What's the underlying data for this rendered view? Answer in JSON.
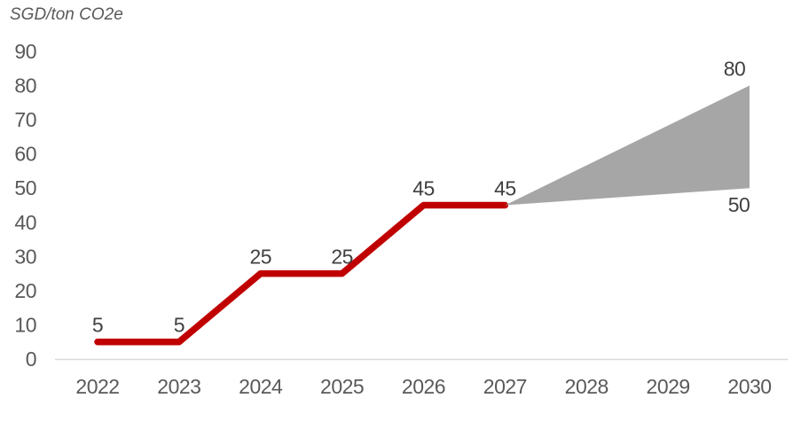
{
  "chart_data": {
    "type": "line",
    "title": "SGD/ton CO2e",
    "ylabel": "SGD/ton CO2e",
    "xlabel": "",
    "categories": [
      "2022",
      "2023",
      "2024",
      "2025",
      "2026",
      "2027",
      "2028",
      "2029",
      "2030"
    ],
    "yticks": [
      0,
      10,
      20,
      30,
      40,
      50,
      60,
      70,
      80,
      90
    ],
    "ylim": [
      0,
      90
    ],
    "grid": false,
    "legend": "none",
    "series": [
      {
        "x": [
          "2022",
          "2023",
          "2024",
          "2025",
          "2026",
          "2027"
        ],
        "values": [
          5,
          5,
          25,
          25,
          45,
          45
        ],
        "labels": [
          "5",
          "5",
          "25",
          "25",
          "45",
          "45"
        ],
        "color": "#C00000"
      }
    ],
    "projection_fan": {
      "from": {
        "x": "2027",
        "value": 45
      },
      "to": {
        "x": "2030",
        "top": 80,
        "bottom": 50
      },
      "labels": {
        "top": "80",
        "bottom": "50"
      },
      "color": "#A6A6A6"
    },
    "colors": {
      "line": "#C00000",
      "fan": "#A6A6A6",
      "axis_line": "#D9D9D9",
      "tick_text": "#595959",
      "data_label_text": "#404040",
      "title_text": "#595959"
    }
  }
}
